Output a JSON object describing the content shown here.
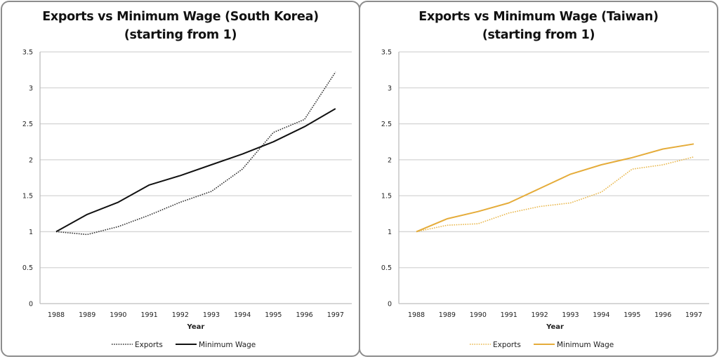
{
  "chart_data": [
    {
      "type": "line",
      "title_line1": "Exports vs Minimum Wage (South Korea)",
      "title_line2": "(starting from 1)",
      "xlabel": "Year",
      "ylabel": "",
      "x": [
        "1988",
        "1989",
        "1990",
        "1991",
        "1992",
        "1993",
        "1994",
        "1995",
        "1996",
        "1997"
      ],
      "ylim": [
        0,
        3.5
      ],
      "yticks": [
        "0",
        "0.5",
        "1",
        "1.5",
        "2",
        "2.5",
        "3",
        "3.5"
      ],
      "grid": true,
      "legend_position": "bottom",
      "series": [
        {
          "name": "Exports",
          "style": "dotted",
          "color": "#333333",
          "values": [
            1.0,
            0.96,
            1.07,
            1.23,
            1.41,
            1.56,
            1.87,
            2.38,
            2.56,
            3.22
          ]
        },
        {
          "name": "Minimum Wage",
          "style": "solid",
          "color": "#111111",
          "values": [
            1.0,
            1.24,
            1.41,
            1.65,
            1.78,
            1.93,
            2.08,
            2.25,
            2.46,
            2.71
          ]
        }
      ]
    },
    {
      "type": "line",
      "title_line1": "Exports vs Minimum Wage (Taiwan)",
      "title_line2": "(starting from 1)",
      "xlabel": "Year",
      "ylabel": "",
      "x": [
        "1988",
        "1989",
        "1990",
        "1991",
        "1992",
        "1993",
        "1994",
        "1995",
        "1996",
        "1997"
      ],
      "ylim": [
        0,
        3.5
      ],
      "yticks": [
        "0",
        "0.5",
        "1",
        "1.5",
        "2",
        "2.5",
        "3",
        "3.5"
      ],
      "grid": true,
      "legend_position": "bottom",
      "series": [
        {
          "name": "Exports",
          "style": "dotted",
          "color": "#E9B84E",
          "values": [
            1.0,
            1.09,
            1.11,
            1.26,
            1.35,
            1.4,
            1.55,
            1.87,
            1.93,
            2.04
          ]
        },
        {
          "name": "Minimum Wage",
          "style": "solid",
          "color": "#E5AC3A",
          "values": [
            1.0,
            1.18,
            1.28,
            1.4,
            1.6,
            1.8,
            1.93,
            2.03,
            2.15,
            2.22
          ]
        }
      ]
    }
  ]
}
